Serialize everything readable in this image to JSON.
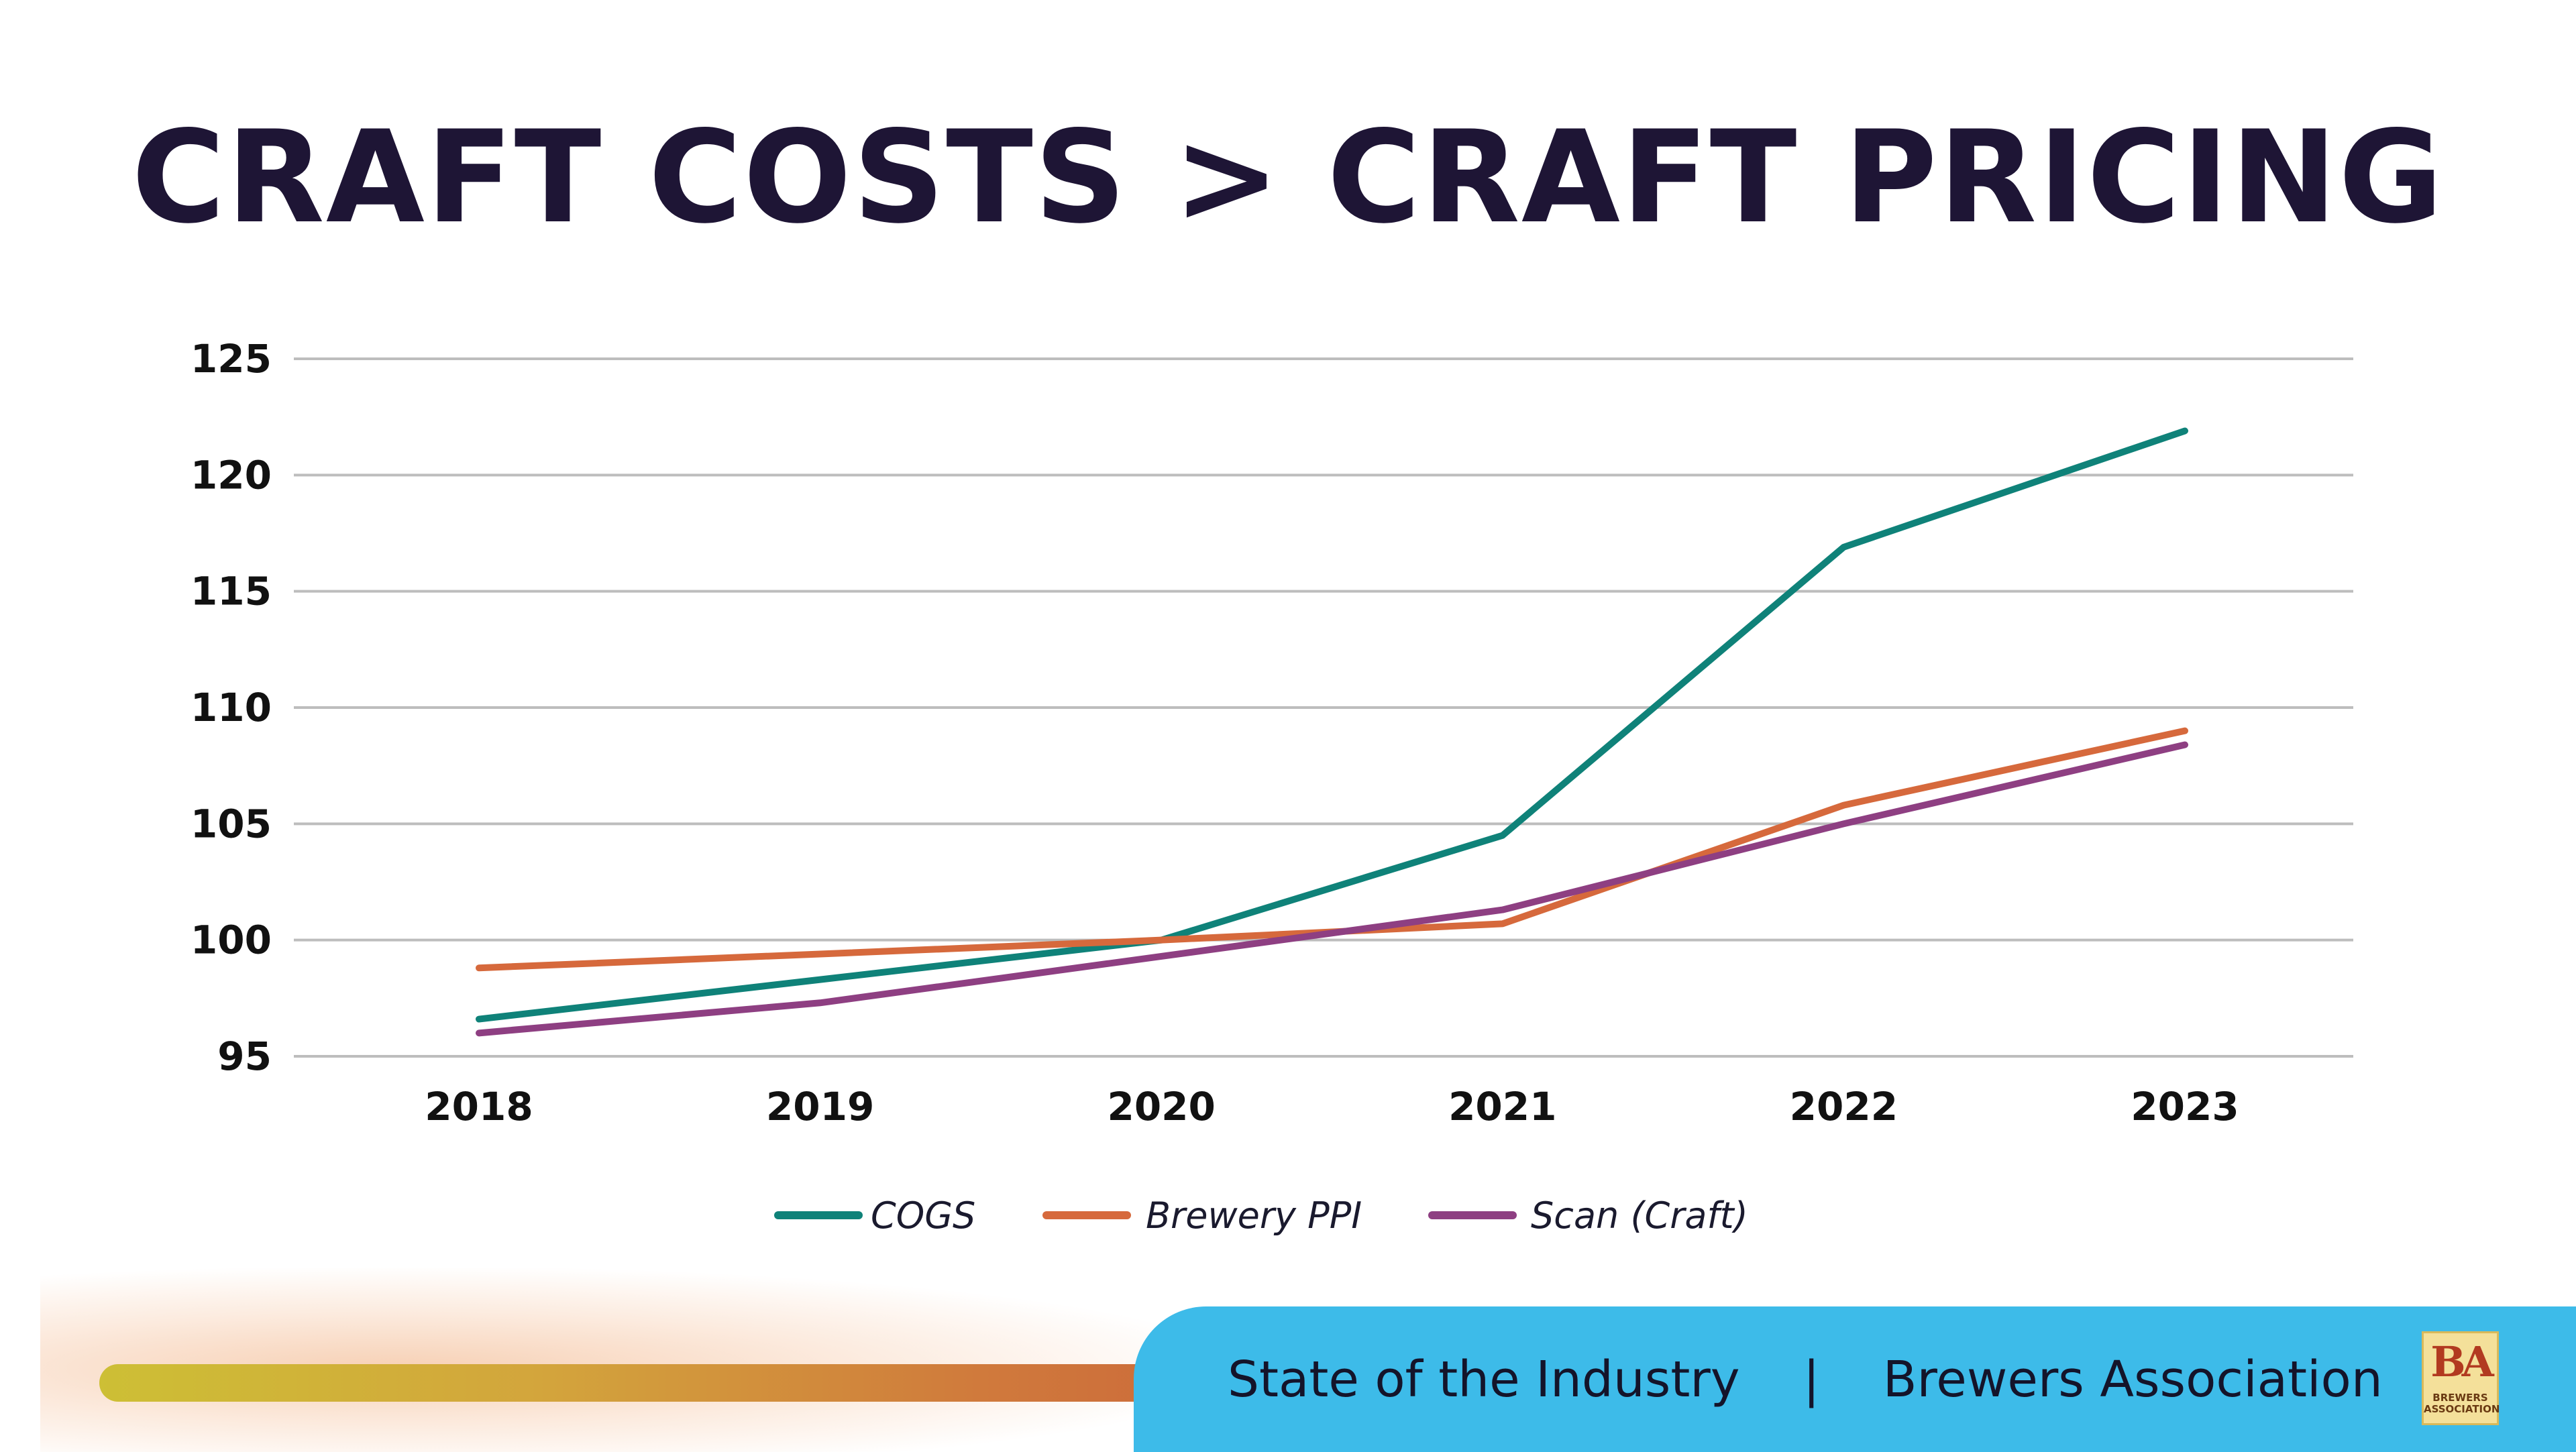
{
  "title": "CRAFT COSTS > CRAFT PRICING",
  "chart_data": {
    "type": "line",
    "categories": [
      "2018",
      "2019",
      "2020",
      "2021",
      "2022",
      "2023"
    ],
    "series": [
      {
        "name": "COGS",
        "color": "#0f8279",
        "values": [
          96.6,
          98.3,
          100.0,
          104.5,
          116.9,
          121.9
        ]
      },
      {
        "name": "Brewery PPI",
        "color": "#d6693c",
        "values": [
          98.8,
          99.4,
          100.0,
          100.7,
          105.8,
          109.0
        ]
      },
      {
        "name": "Scan (Craft)",
        "color": "#8e3f82",
        "values": [
          96.0,
          97.3,
          99.3,
          101.3,
          105.0,
          108.4
        ]
      }
    ],
    "yticks": [
      95,
      100,
      105,
      110,
      115,
      120,
      125
    ],
    "ylim": [
      95,
      125
    ],
    "grid": true,
    "legend_position": "bottom"
  },
  "footer": {
    "left_text": "State of the Industry",
    "separator": "|",
    "right_text": "Brewers Association",
    "logo_mark": "BA",
    "logo_caption": "BREWERS ASSOCIATION"
  }
}
